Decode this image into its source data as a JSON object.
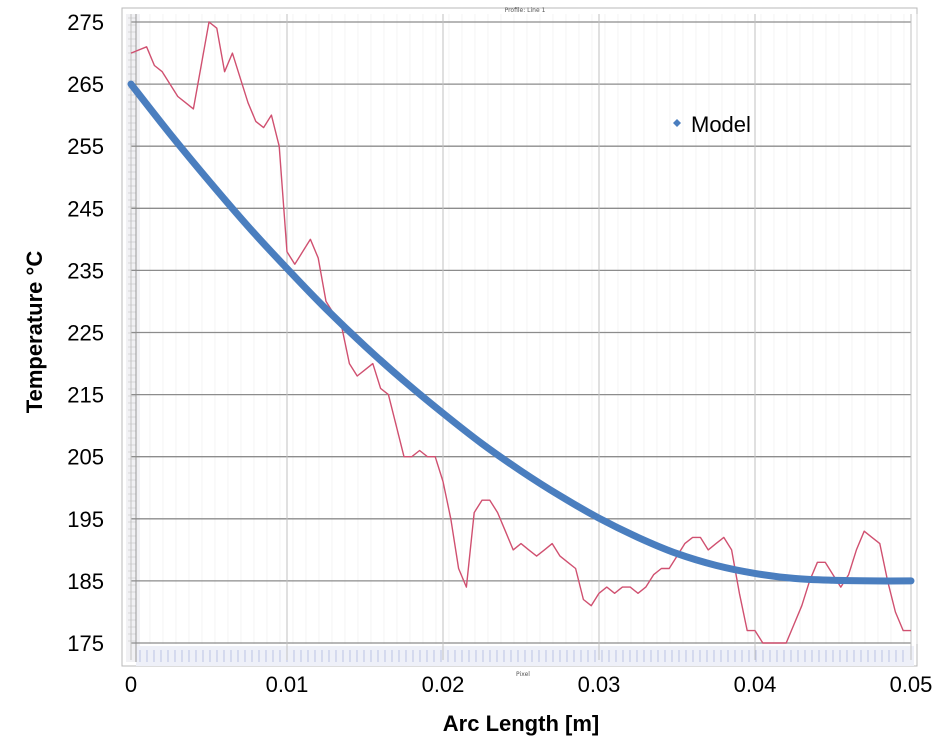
{
  "chart_data": {
    "type": "line",
    "xlabel": "Arc Length [m]",
    "ylabel": "Temperature °C",
    "xlim": [
      0,
      0.05
    ],
    "ylim": [
      175,
      275
    ],
    "x_ticks": [
      0,
      0.01,
      0.02,
      0.03,
      0.04,
      0.05
    ],
    "x_tick_labels": [
      "0",
      "0.01",
      "0.02",
      "0.03",
      "0.04",
      "0.05"
    ],
    "y_ticks": [
      175,
      185,
      195,
      205,
      215,
      225,
      235,
      245,
      255,
      265,
      275
    ],
    "y_tick_labels": [
      "175",
      "185",
      "195",
      "205",
      "215",
      "225",
      "235",
      "245",
      "255",
      "265",
      "275"
    ],
    "grid": true,
    "legend": {
      "position": "top-right",
      "entries": [
        "Model"
      ]
    },
    "embedded_plot_title": "Profile: Line 1",
    "embedded_plot_xlabel": "Pixel",
    "series": [
      {
        "name": "Model",
        "color": "#4a7ebf",
        "x": [
          0,
          0.0025,
          0.005,
          0.0075,
          0.01,
          0.0125,
          0.015,
          0.0175,
          0.02,
          0.0225,
          0.025,
          0.0275,
          0.03,
          0.0325,
          0.035,
          0.0375,
          0.04,
          0.0425,
          0.045,
          0.0475,
          0.05
        ],
        "y": [
          265,
          257,
          249.4,
          242.1,
          235.3,
          228.8,
          222.8,
          217.2,
          212,
          207.1,
          202.7,
          198.7,
          195.1,
          192,
          189.4,
          187.5,
          186.2,
          185.4,
          185.1,
          185,
          185
        ]
      },
      {
        "color": "#d05070",
        "x": [
          0,
          0.001,
          0.0015,
          0.002,
          0.0025,
          0.003,
          0.0035,
          0.004,
          0.0045,
          0.005,
          0.0055,
          0.006,
          0.0065,
          0.007,
          0.0075,
          0.008,
          0.0085,
          0.009,
          0.0095,
          0.01,
          0.0105,
          0.011,
          0.0115,
          0.012,
          0.0125,
          0.013,
          0.0135,
          0.014,
          0.0145,
          0.015,
          0.0155,
          0.016,
          0.0165,
          0.017,
          0.0175,
          0.018,
          0.0185,
          0.019,
          0.0195,
          0.02,
          0.0205,
          0.021,
          0.0215,
          0.022,
          0.0225,
          0.023,
          0.0235,
          0.024,
          0.0245,
          0.025,
          0.0255,
          0.026,
          0.0265,
          0.027,
          0.0275,
          0.028,
          0.0285,
          0.029,
          0.0295,
          0.03,
          0.0305,
          0.031,
          0.0315,
          0.032,
          0.0325,
          0.033,
          0.0335,
          0.034,
          0.0345,
          0.035,
          0.0355,
          0.036,
          0.0365,
          0.037,
          0.0375,
          0.038,
          0.0385,
          0.039,
          0.0395,
          0.04,
          0.0405,
          0.041,
          0.0415,
          0.042,
          0.0425,
          0.043,
          0.0435,
          0.044,
          0.0445,
          0.045,
          0.0455,
          0.046,
          0.0465,
          0.047,
          0.0475,
          0.048,
          0.0485,
          0.049,
          0.0495,
          0.05
        ],
        "y": [
          270,
          271,
          268,
          267,
          265,
          263,
          262,
          261,
          268,
          275,
          274,
          267,
          270,
          266,
          262,
          259,
          258,
          260,
          255,
          238,
          236,
          238,
          240,
          237,
          230,
          228,
          226,
          220,
          218,
          219,
          220,
          216,
          215,
          210,
          205,
          205,
          206,
          205,
          205,
          201,
          195,
          187,
          184,
          196,
          198,
          198,
          196,
          193,
          190,
          191,
          190,
          189,
          190,
          191,
          189,
          188,
          187,
          182,
          181,
          183,
          184,
          183,
          184,
          184,
          183,
          184,
          186,
          187,
          187,
          189,
          191,
          192,
          192,
          190,
          191,
          192,
          190,
          183,
          177,
          177,
          175,
          175,
          175,
          175,
          178,
          181,
          185,
          188,
          188,
          186,
          184,
          186,
          190,
          193,
          192,
          191,
          185,
          180,
          177,
          177
        ]
      }
    ]
  }
}
